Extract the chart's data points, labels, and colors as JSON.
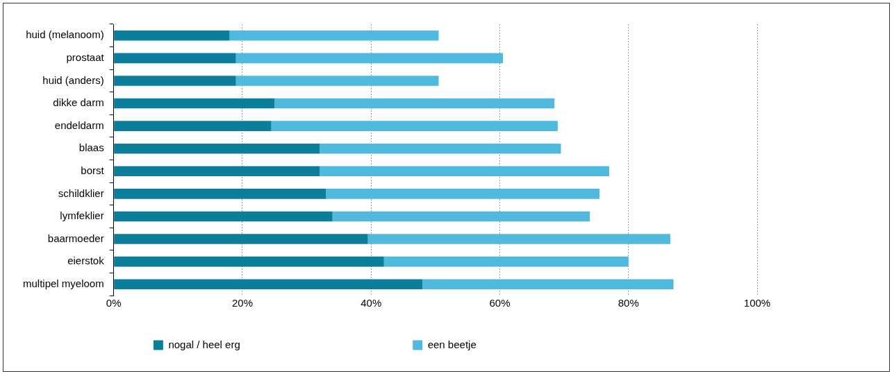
{
  "chart_data": {
    "type": "bar",
    "orientation": "horizontal",
    "stacked": true,
    "categories": [
      "huid (melanoom)",
      "prostaat",
      "huid (anders)",
      "dikke darm",
      "endeldarm",
      "blaas",
      "borst",
      "schildklier",
      "lymfeklier",
      "baarmoeder",
      "eierstok",
      "multipel myeloom"
    ],
    "series": [
      {
        "name": "nogal / heel erg",
        "color": "#0b7e9c",
        "values": [
          18,
          19,
          19,
          25,
          24.5,
          32,
          32,
          33,
          34,
          39.5,
          42,
          48
        ]
      },
      {
        "name": "een beetje",
        "color": "#4fb9de",
        "values": [
          32.5,
          41.5,
          31.5,
          43.5,
          44.5,
          37.5,
          45,
          42.5,
          40,
          47,
          38,
          39
        ]
      }
    ],
    "xlim": [
      0,
      100
    ],
    "xticks": [
      {
        "value": 0,
        "label": "0%"
      },
      {
        "value": 20,
        "label": "20%"
      },
      {
        "value": 40,
        "label": "40%"
      },
      {
        "value": 60,
        "label": "60%"
      },
      {
        "value": 80,
        "label": "80%"
      },
      {
        "value": 100,
        "label": "100%"
      }
    ],
    "grid": "x",
    "legend": "bottom"
  }
}
